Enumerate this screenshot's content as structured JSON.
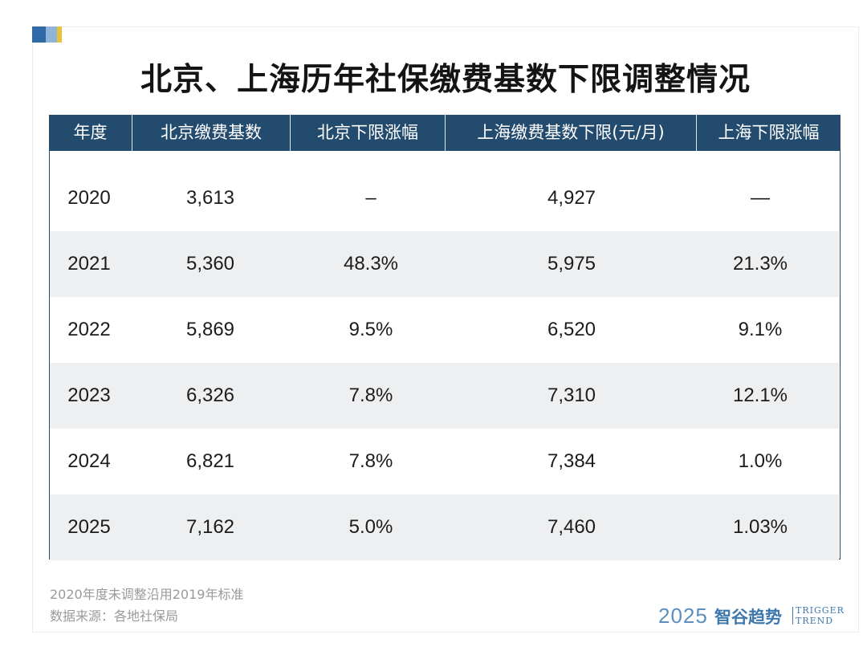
{
  "title": "北京、上海历年社保缴费基数下限调整情况",
  "columns": [
    "年度",
    "北京缴费基数",
    "北京下限涨幅",
    "上海缴费基数下限(元/月)",
    "上海下限涨幅"
  ],
  "rows": [
    [
      "2020",
      "3,613",
      "–",
      "4,927",
      "—"
    ],
    [
      "2021",
      "5,360",
      "48.3%",
      "5,975",
      "21.3%"
    ],
    [
      "2022",
      "5,869",
      "9.5%",
      "6,520",
      "9.1%"
    ],
    [
      "2023",
      "6,326",
      "7.8%",
      "7,310",
      "12.1%"
    ],
    [
      "2024",
      "6,821",
      "7.8%",
      "7,384",
      "1.0%"
    ],
    [
      "2025",
      "7,162",
      "5.0%",
      "7,460",
      "1.03%"
    ]
  ],
  "footnotes": [
    "2020年度未调整沿用2019年标准",
    "数据来源：各地社保局"
  ],
  "logo": {
    "year": "2025",
    "name": "智谷趋势",
    "en_line1": "TRIGGER",
    "en_line2": "TREND"
  },
  "colors": {
    "header_bg": "#234b6e",
    "row_shade": "#eeeff0",
    "accent_blue": "#2e6aa8",
    "accent_yellow": "#e8c23a"
  },
  "chart_data": {
    "type": "table",
    "title": "北京、上海历年社保缴费基数下限调整情况",
    "columns": [
      "年度",
      "北京缴费基数",
      "北京下限涨幅",
      "上海缴费基数下限(元/月)",
      "上海下限涨幅"
    ],
    "rows": [
      [
        "2020",
        "3,613",
        "–",
        "4,927",
        "—"
      ],
      [
        "2021",
        "5,360",
        "48.3%",
        "5,975",
        "21.3%"
      ],
      [
        "2022",
        "5,869",
        "9.5%",
        "6,520",
        "9.1%"
      ],
      [
        "2023",
        "6,326",
        "7.8%",
        "7,310",
        "12.1%"
      ],
      [
        "2024",
        "6,821",
        "7.8%",
        "7,384",
        "1.0%"
      ],
      [
        "2025",
        "7,162",
        "5.0%",
        "7,460",
        "1.03%"
      ]
    ]
  }
}
